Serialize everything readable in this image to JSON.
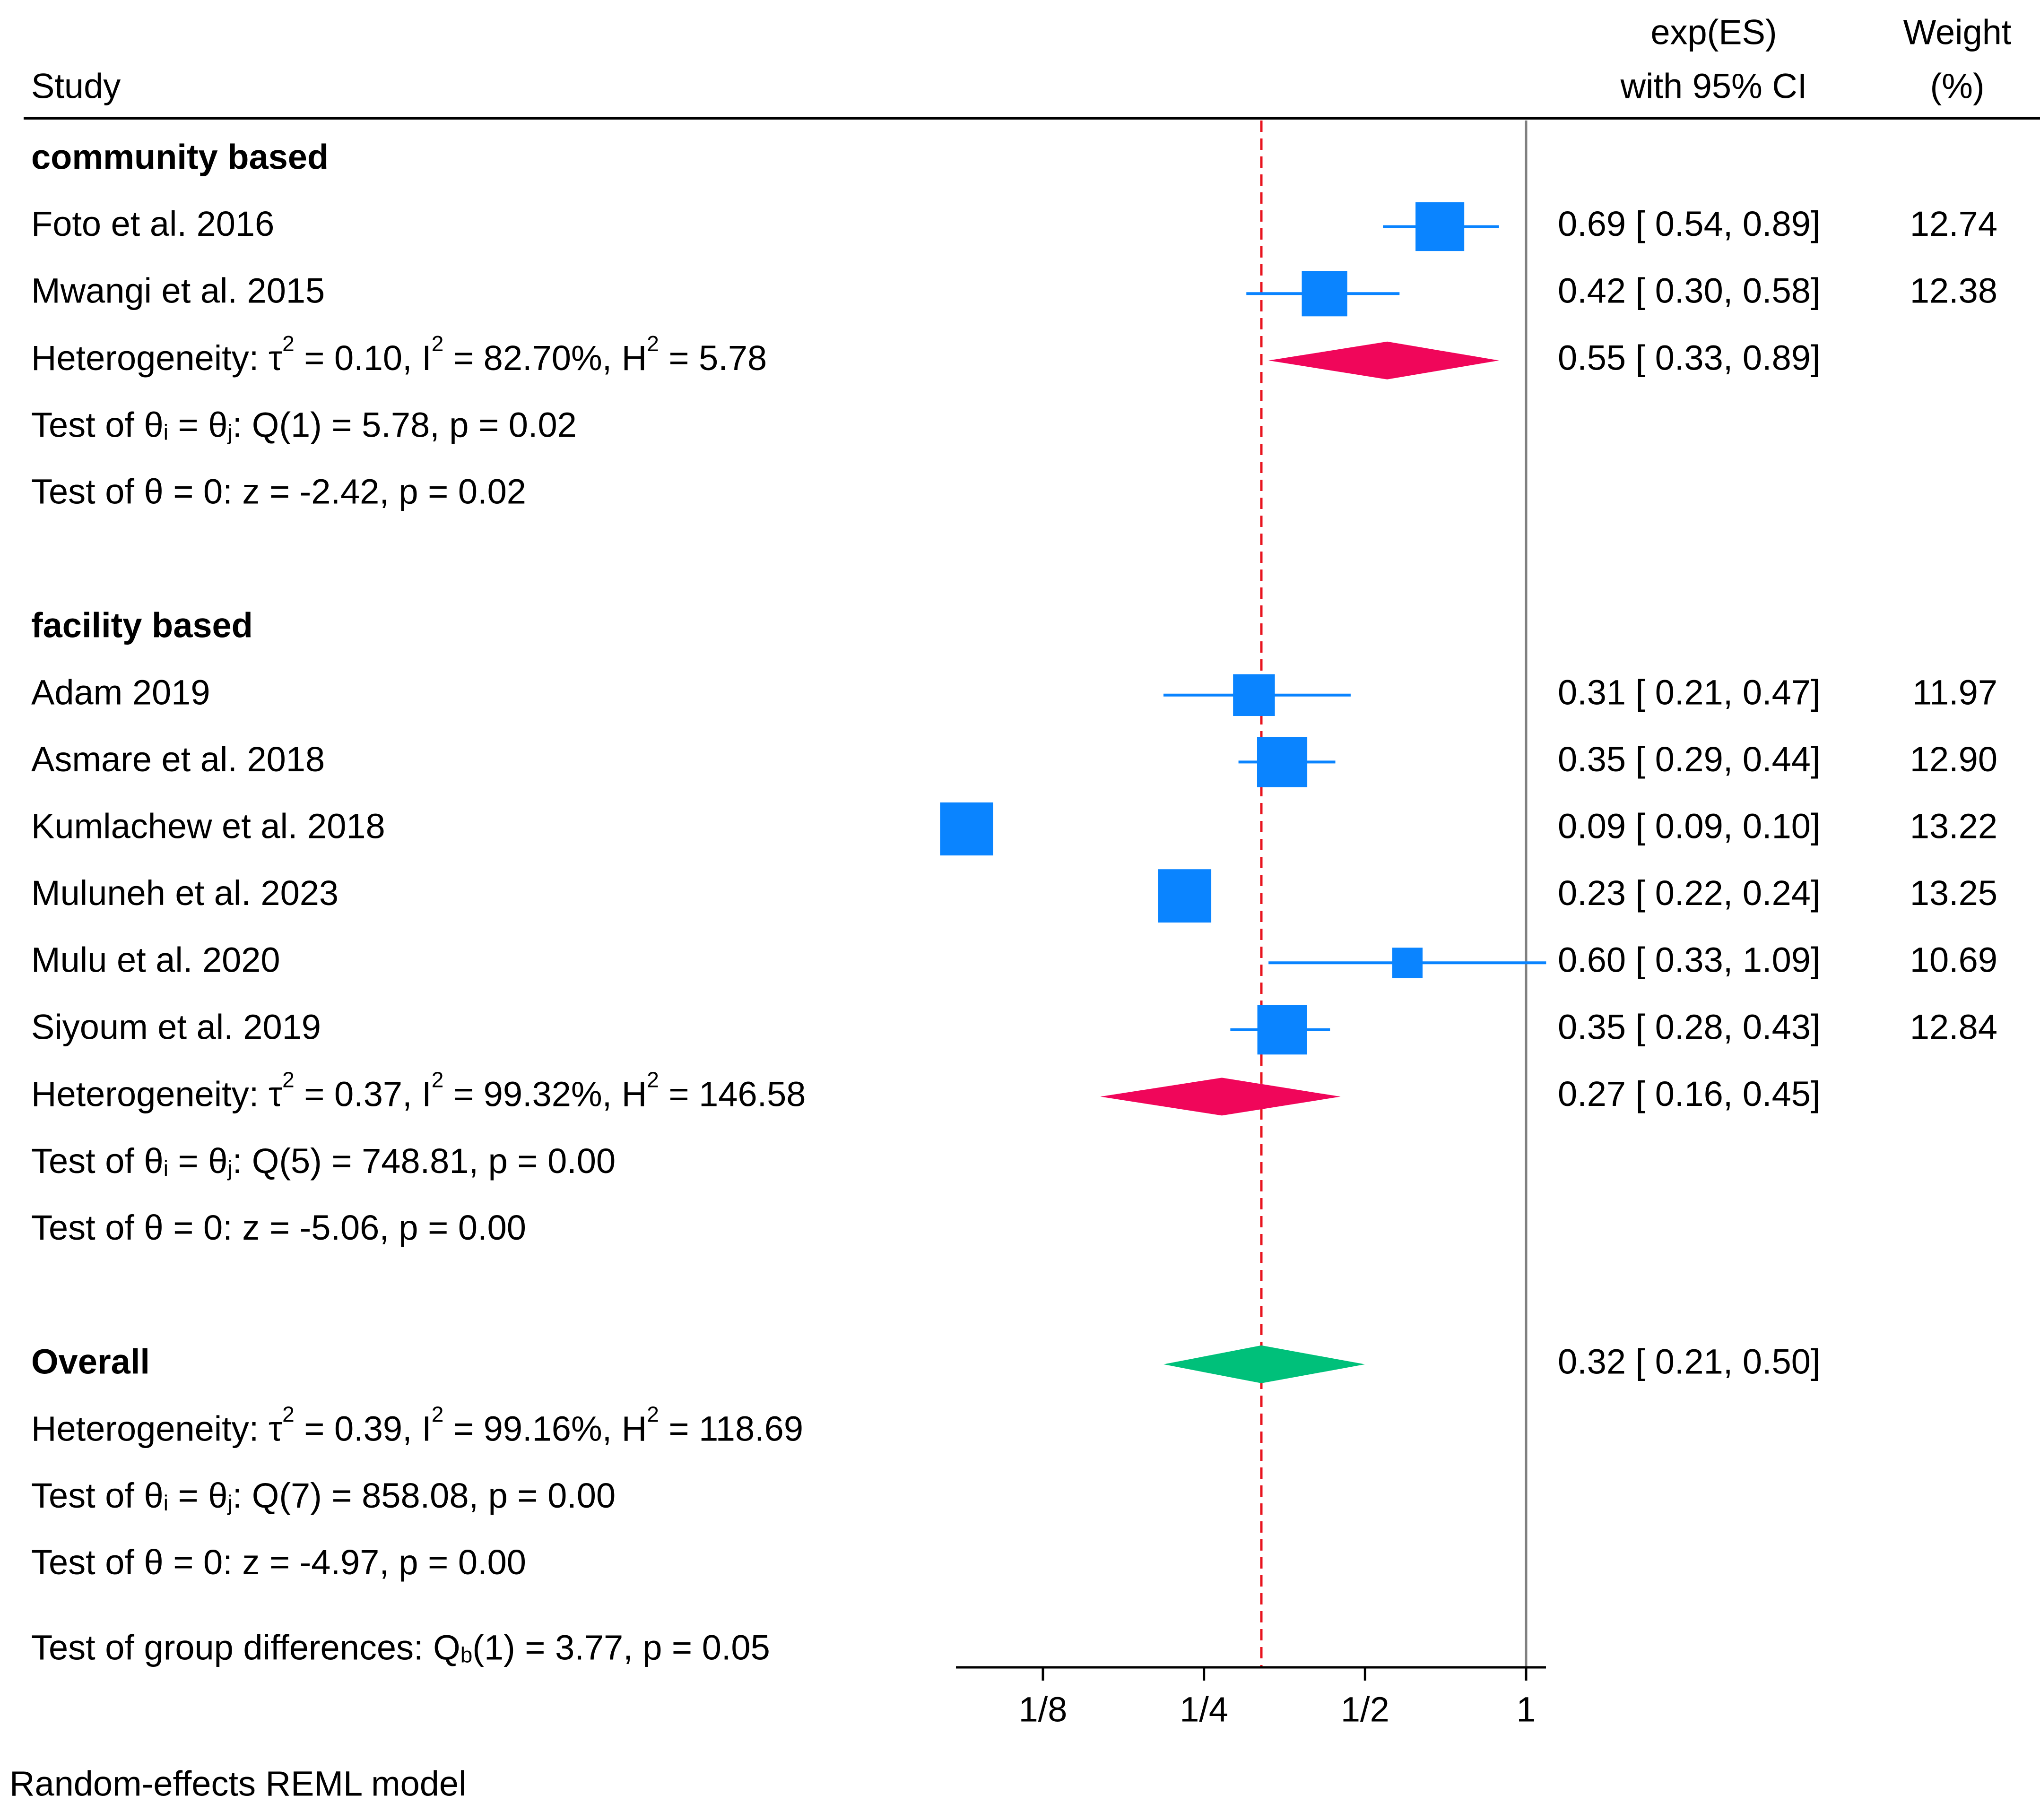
{
  "chart_data": {
    "type": "forest",
    "scale": "log2",
    "xlim": [
      0.09,
      1.09
    ],
    "x_ticks": [
      {
        "value": 0.125,
        "label": "1/8"
      },
      {
        "value": 0.25,
        "label": "1/4"
      },
      {
        "value": 0.5,
        "label": "1/2"
      },
      {
        "value": 1,
        "label": "1"
      }
    ],
    "reference_line": 1,
    "overall_line": 0.32,
    "header": {
      "study": "Study",
      "es_line1": "exp(ES)",
      "es_line2": "with 95% CI",
      "weight_line1": "Weight",
      "weight_line2": "(%)"
    },
    "colors": {
      "study_marker": "#0a84ff",
      "subgroup_diamond": "#f0065a",
      "overall_diamond": "#00c07a",
      "overall_line": "#e8141e",
      "reference_line": "#808080"
    },
    "groups": [
      {
        "name": "community based",
        "studies": [
          {
            "study": "Foto et al. 2016",
            "es": 0.69,
            "lo": 0.54,
            "hi": 0.89,
            "es_text": "0.69 [ 0.54,  0.89]",
            "weight": "12.74"
          },
          {
            "study": "Mwangi et al. 2015",
            "es": 0.42,
            "lo": 0.3,
            "hi": 0.58,
            "es_text": "0.42 [ 0.30,  0.58]",
            "weight": "12.38"
          }
        ],
        "pooled": {
          "es": 0.55,
          "lo": 0.33,
          "hi": 0.89,
          "es_text": "0.55 [ 0.33,  0.89]"
        },
        "stats": [
          {
            "kind": "het",
            "tau2": "0.10",
            "i2": "82.70%",
            "h2": "5.78"
          },
          {
            "kind": "q",
            "q": "Q(1) = 5.78, p = 0.02"
          },
          {
            "kind": "z",
            "text": "Test of θ = 0: z = -2.42, p = 0.02"
          }
        ]
      },
      {
        "name": "facility based",
        "studies": [
          {
            "study": "Adam 2019",
            "es": 0.31,
            "lo": 0.21,
            "hi": 0.47,
            "es_text": "0.31 [ 0.21,  0.47]",
            "weight": "11.97"
          },
          {
            "study": "Asmare et al. 2018",
            "es": 0.35,
            "lo": 0.29,
            "hi": 0.44,
            "es_text": "0.35 [ 0.29,  0.44]",
            "weight": "12.90"
          },
          {
            "study": "Kumlachew et al. 2018",
            "es": 0.09,
            "lo": 0.09,
            "hi": 0.1,
            "es_text": "0.09 [ 0.09,  0.10]",
            "weight": "13.22"
          },
          {
            "study": "Muluneh et al. 2023",
            "es": 0.23,
            "lo": 0.22,
            "hi": 0.24,
            "es_text": "0.23 [ 0.22,  0.24]",
            "weight": "13.25"
          },
          {
            "study": "Mulu et al. 2020",
            "es": 0.6,
            "lo": 0.33,
            "hi": 1.09,
            "es_text": "0.60 [ 0.33,  1.09]",
            "weight": "10.69"
          },
          {
            "study": "Siyoum et al. 2019",
            "es": 0.35,
            "lo": 0.28,
            "hi": 0.43,
            "es_text": "0.35 [ 0.28,  0.43]",
            "weight": "12.84"
          }
        ],
        "pooled": {
          "es": 0.27,
          "lo": 0.16,
          "hi": 0.45,
          "es_text": "0.27 [ 0.16,  0.45]"
        },
        "stats": [
          {
            "kind": "het",
            "tau2": "0.37",
            "i2": "99.32%",
            "h2": "146.58"
          },
          {
            "kind": "q",
            "q": "Q(5) = 748.81, p = 0.00"
          },
          {
            "kind": "z",
            "text": "Test of θ = 0: z = -5.06, p = 0.00"
          }
        ]
      }
    ],
    "overall": {
      "name": "Overall",
      "es": 0.32,
      "lo": 0.21,
      "hi": 0.5,
      "es_text": "0.32 [ 0.21,  0.50]",
      "stats": [
        {
          "kind": "het",
          "tau2": "0.39",
          "i2": "99.16%",
          "h2": "118.69"
        },
        {
          "kind": "q",
          "q": "Q(7) = 858.08, p = 0.00"
        },
        {
          "kind": "z",
          "text": "Test of θ = 0: z = -4.97, p = 0.00"
        }
      ]
    },
    "group_test": {
      "prefix": "Test of group differences: Q",
      "sub": "b",
      "suffix": "(1) = 3.77, p = 0.05"
    },
    "footnote": "Random-effects REML model"
  }
}
